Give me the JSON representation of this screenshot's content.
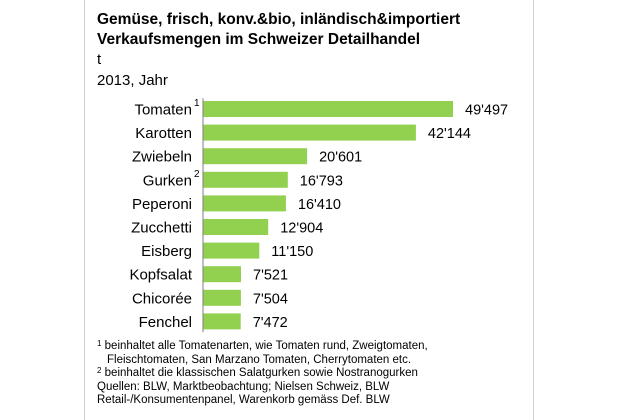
{
  "chart_data": {
    "type": "bar",
    "orientation": "horizontal",
    "title": "Gemüse, frisch, konv.&bio, inländisch&importiert",
    "subtitle": "Verkaufsmengen im Schweizer Detailhandel",
    "unit": "t",
    "period": "2013, Jahr",
    "categories": [
      "Tomaten",
      "Karotten",
      "Zwiebeln",
      "Gurken",
      "Peperoni",
      "Zucchetti",
      "Eisberg",
      "Kopfsalat",
      "Chicorée",
      "Fenchel"
    ],
    "category_footnotes": [
      "1",
      "",
      "",
      "2",
      "",
      "",
      "",
      "",
      "",
      ""
    ],
    "values": [
      49497,
      42144,
      20601,
      16793,
      16410,
      12904,
      11150,
      7521,
      7504,
      7472
    ],
    "value_labels": [
      "49'497",
      "42'144",
      "20'601",
      "16'793",
      "16'410",
      "12'904",
      "11'150",
      "7'521",
      "7'504",
      "7'472"
    ],
    "bar_color": "#92d050",
    "grid": false,
    "legend": "none"
  },
  "footnotes": {
    "note1_marker": "1",
    "note1_line1": "beinhaltet alle Tomatenarten, wie Tomaten rund, Zweigtomaten,",
    "note1_line2": "Fleischtomaten, San Marzano Tomaten, Cherrytomaten etc.",
    "note2_marker": "2",
    "note2_line1": "beinhaltet die klassischen Salatgurken sowie Nostranogurken",
    "sources_line1": "Quellen: BLW, Marktbeobachtung; Nielsen Schweiz, BLW",
    "sources_line2": "Retail-/Konsumentenpanel, Warenkorb gemäss Def. BLW"
  }
}
